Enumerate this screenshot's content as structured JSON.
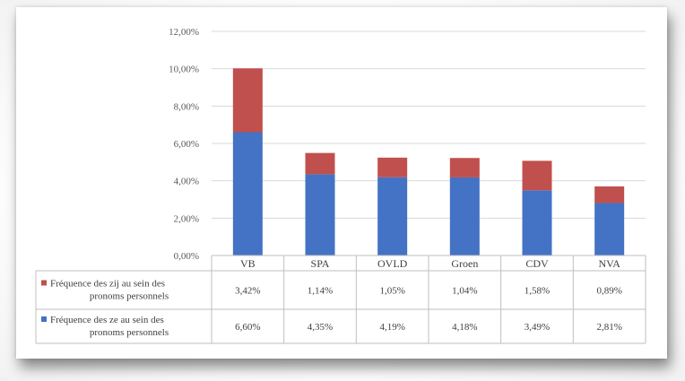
{
  "chart_data": {
    "type": "bar",
    "stacked": true,
    "categories": [
      "VB",
      "SPA",
      "OVLD",
      "Groen",
      "CDV",
      "NVA"
    ],
    "series": [
      {
        "name_lines": [
          "Fréquence des ze au sein des",
          "pronoms personnels"
        ],
        "values": [
          6.6,
          4.35,
          4.19,
          4.18,
          3.49,
          2.81
        ],
        "labels": [
          "6,60%",
          "4,35%",
          "4,19%",
          "4,18%",
          "3,49%",
          "2,81%"
        ],
        "color": "#4472c4"
      },
      {
        "name_lines": [
          "Fréquence des zij au sein des",
          "pronoms personnels"
        ],
        "values": [
          3.42,
          1.14,
          1.05,
          1.04,
          1.58,
          0.89
        ],
        "labels": [
          "3,42%",
          "1,14%",
          "1,05%",
          "1,04%",
          "1,58%",
          "0,89%"
        ],
        "color": "#c0504d"
      }
    ],
    "ylim": [
      0,
      12
    ],
    "y_ticks": [
      0,
      2,
      4,
      6,
      8,
      10,
      12
    ],
    "y_tick_labels": [
      "0,00%",
      "2,00%",
      "4,00%",
      "6,00%",
      "8,00%",
      "10,00%",
      "12,00%"
    ],
    "grid": true,
    "legend": "data-table-left",
    "data_table": true
  }
}
